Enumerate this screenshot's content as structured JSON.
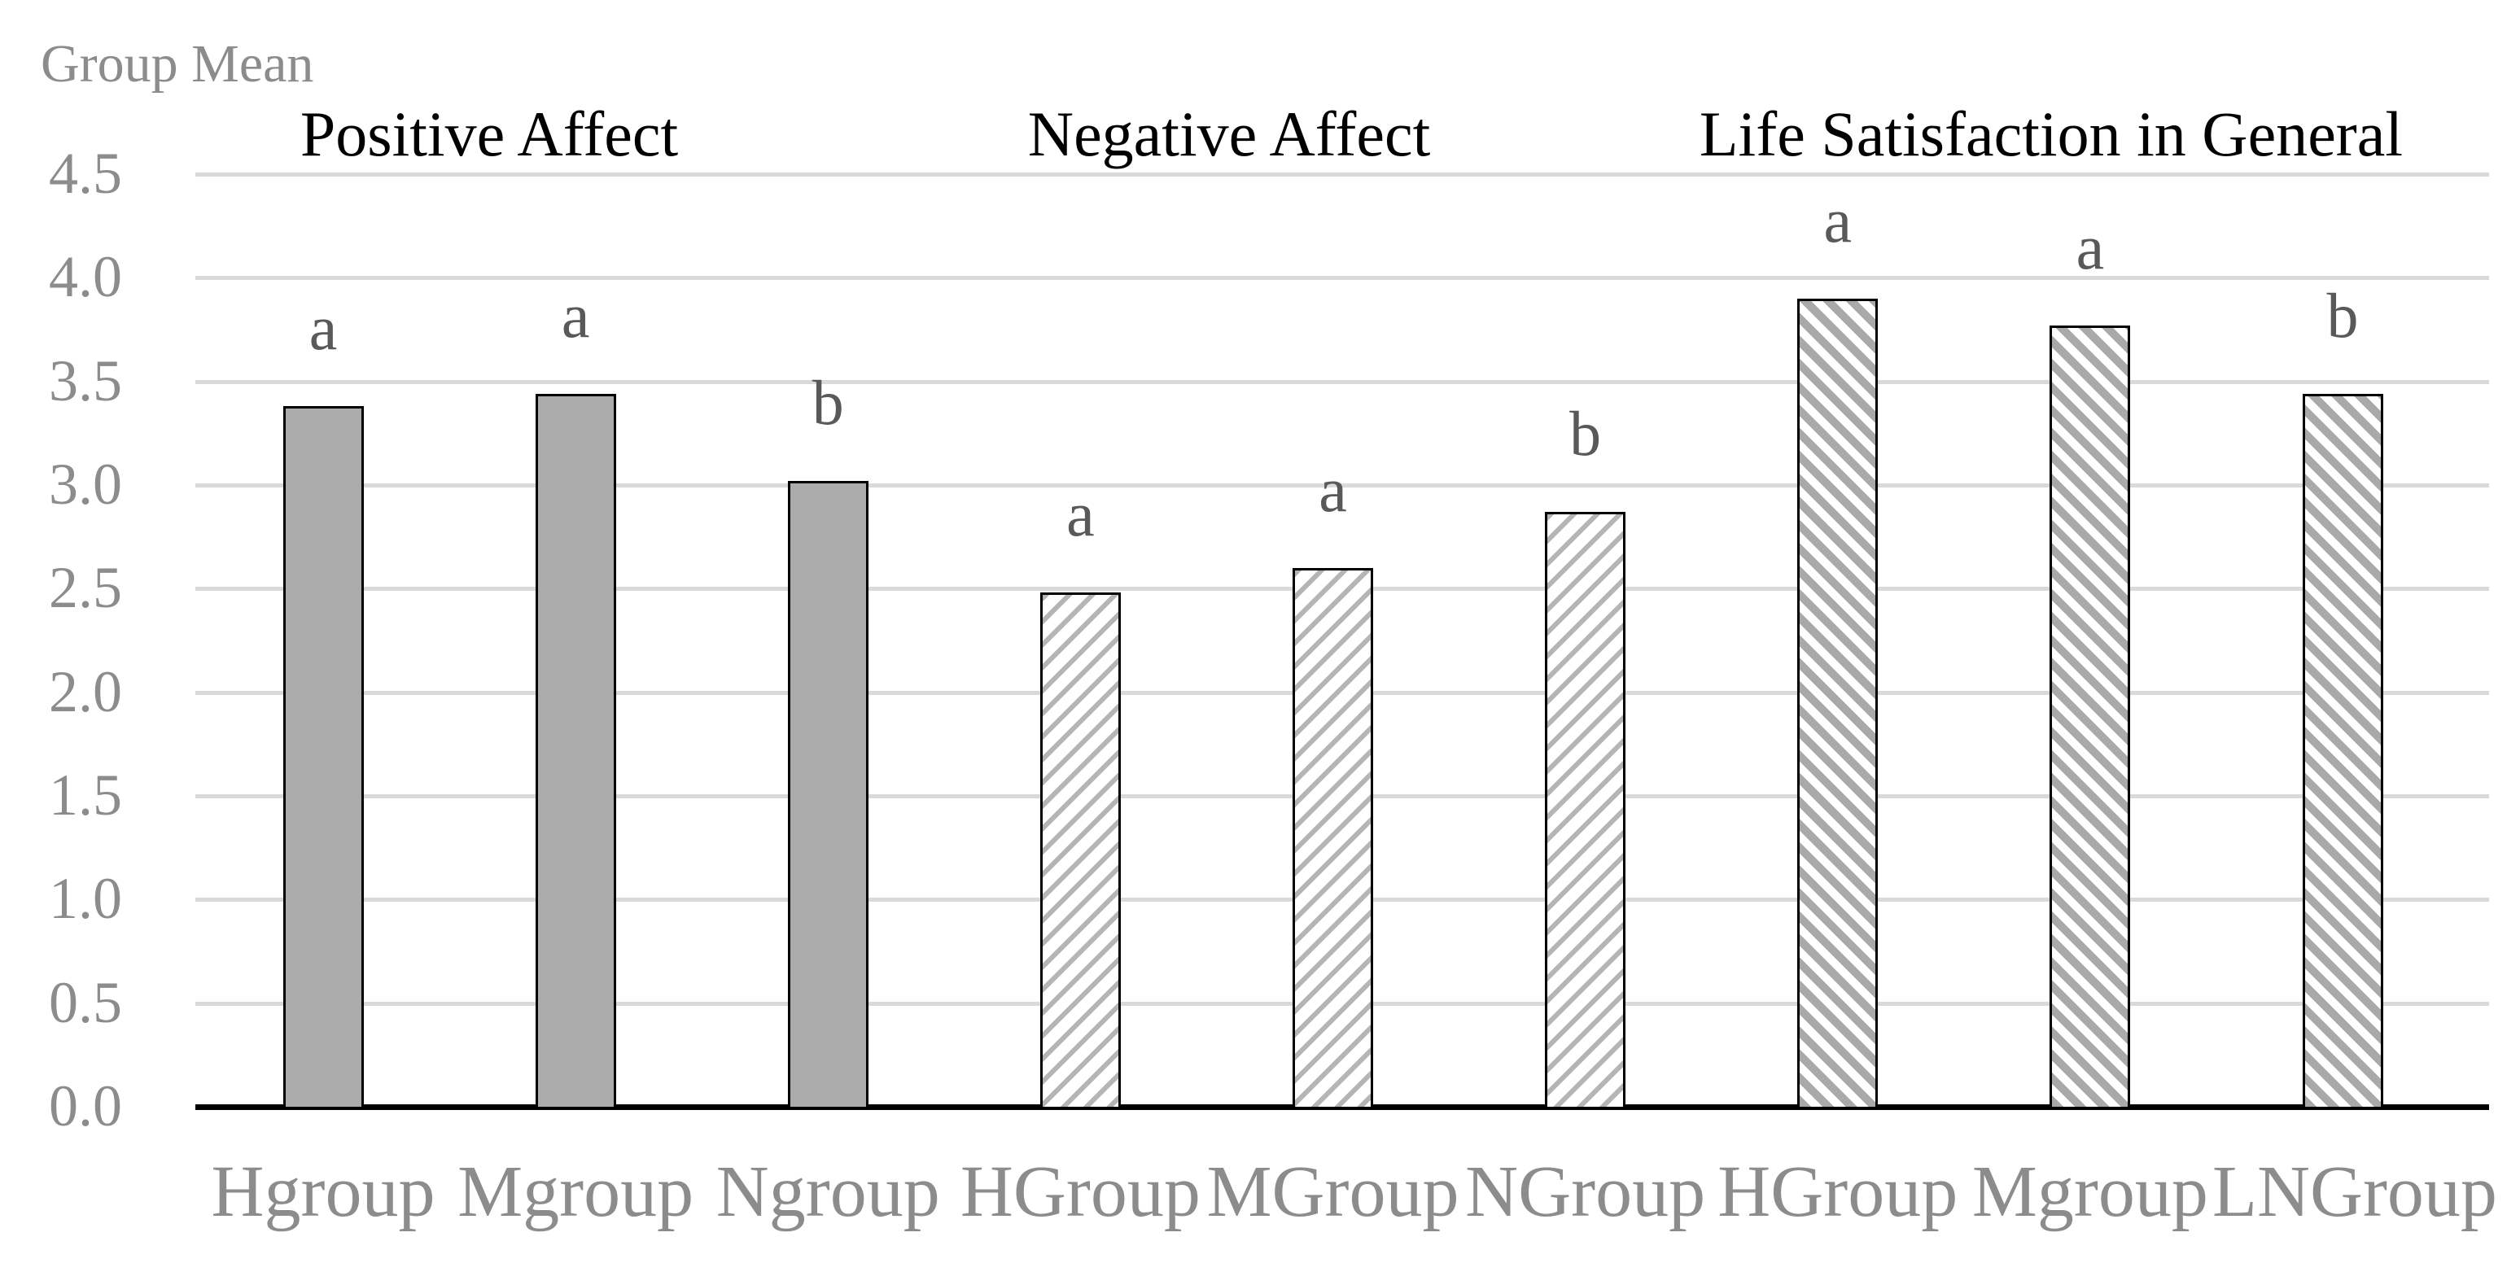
{
  "page": {
    "background": "#ffffff"
  },
  "colors": {
    "text_gray": "#8c8c8c",
    "letter_gray": "#595959",
    "title_black": "#000000",
    "gridline": "#d9d9d9",
    "axis_line": "#000000",
    "bar_solid_fill": "#ababab",
    "hatch_light_gray": "#b5b5b5",
    "hatch_heavy_gray": "#a9a9a9",
    "bar_outline": "#000000"
  },
  "chart_data": {
    "type": "bar",
    "axis_title": "Group Mean",
    "ylim": [
      0.0,
      4.5
    ],
    "ytick_step": 0.5,
    "ytick_labels": [
      "4.5",
      "4.0",
      "3.5",
      "3.0",
      "2.5",
      "2.0",
      "1.5",
      "1.0",
      "0.5",
      "0.0"
    ],
    "ytick_values": [
      4.5,
      4.0,
      3.5,
      3.0,
      2.5,
      2.0,
      1.5,
      1.0,
      0.5,
      0.0
    ],
    "grid": "horizontal-on",
    "legend_position": "none",
    "xlabel": "",
    "ylabel": "Group Mean",
    "groups": [
      {
        "title": "Positive Affect",
        "fill_style": "solid-gray",
        "bars": [
          {
            "label": "Hgroup",
            "value": 3.38,
            "sig_letter": "a"
          },
          {
            "label": "Mgroup",
            "value": 3.44,
            "sig_letter": "a"
          },
          {
            "label": "Ngroup",
            "value": 3.02,
            "sig_letter": "b"
          }
        ]
      },
      {
        "title": "Negative Affect",
        "fill_style": "light-upward-diagonal-hatch",
        "bars": [
          {
            "label": "HGroup",
            "value": 2.48,
            "sig_letter": "a"
          },
          {
            "label": "MGroup",
            "value": 2.6,
            "sig_letter": "a"
          },
          {
            "label": "NGroup",
            "value": 2.87,
            "sig_letter": "b"
          }
        ]
      },
      {
        "title": "Life Satisfaction in General",
        "fill_style": "heavy-downward-diagonal-hatch",
        "bars": [
          {
            "label": "HGroup",
            "value": 3.9,
            "sig_letter": "a"
          },
          {
            "label": "Mgroup",
            "value": 3.77,
            "sig_letter": "a"
          },
          {
            "label": "LNGroup",
            "value": 3.44,
            "sig_letter": "b"
          }
        ]
      }
    ]
  }
}
